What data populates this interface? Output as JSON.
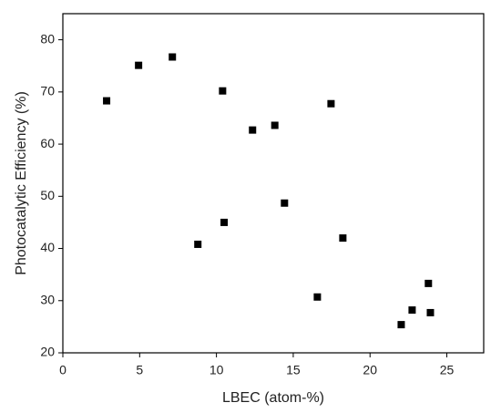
{
  "chart_data": {
    "type": "scatter",
    "x_label": "LBEC (atom-%)",
    "y_label": "Photocatalytic Efficiency (%)",
    "x": [
      2.85,
      4.93,
      7.13,
      10.4,
      12.35,
      13.8,
      17.46,
      8.79,
      10.5,
      14.43,
      18.23,
      16.57,
      22.03,
      22.74,
      23.8,
      23.93
    ],
    "values": [
      68.3,
      75.1,
      76.7,
      70.2,
      62.7,
      63.6,
      67.75,
      40.8,
      45.0,
      48.7,
      42.0,
      30.7,
      25.4,
      28.2,
      33.3,
      27.7
    ],
    "color": "#000000",
    "xlim": [
      0,
      27.4
    ],
    "xticks": [
      0,
      5,
      10,
      15,
      20,
      25
    ],
    "ylim": [
      20,
      85
    ],
    "yticks": [
      20,
      30,
      40,
      50,
      60,
      70,
      80
    ],
    "grid": false
  }
}
